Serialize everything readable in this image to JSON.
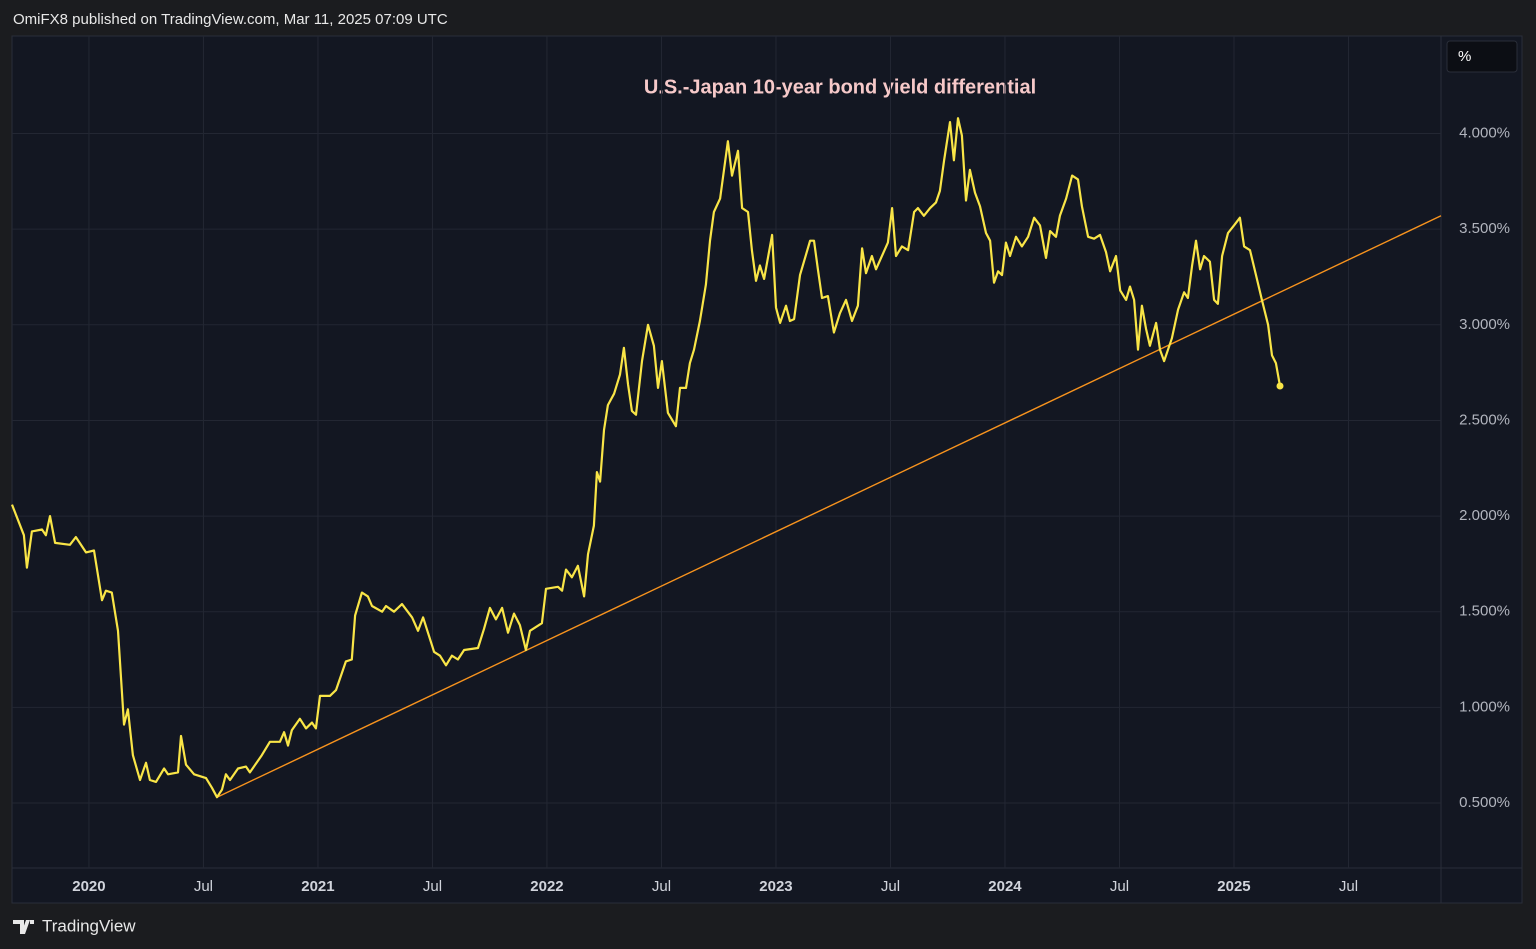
{
  "header": "OmiFX8 published on TradingView.com, Mar 11, 2025 07:09 UTC",
  "footer": "TradingView",
  "chart_data": {
    "type": "line",
    "title": "U.S.-Japan 10-year bond yield differential",
    "unit_label": "%",
    "xlim": [
      2019.664,
      2025.904
    ],
    "ylim": [
      0.16,
      4.51
    ],
    "xticks": [
      2020,
      {
        "value": 2020.5,
        "label": "Jul"
      },
      2021,
      {
        "value": 2021.5,
        "label": "Jul"
      },
      2022,
      {
        "value": 2022.5,
        "label": "Jul"
      },
      2023,
      {
        "value": 2023.5,
        "label": "Jul"
      },
      2024,
      {
        "value": 2024.5,
        "label": "Jul"
      },
      2025,
      {
        "value": 2025.5,
        "label": "Jul"
      }
    ],
    "yticks": [
      {
        "value": 0.5,
        "label": "0.500%"
      },
      {
        "value": 1,
        "label": "1.000%"
      },
      {
        "value": 1.5,
        "label": "1.500%"
      },
      {
        "value": 2,
        "label": "2.000%"
      },
      {
        "value": 2.5,
        "label": "2.500%"
      },
      {
        "value": 3,
        "label": "3.000%"
      },
      {
        "value": 3.5,
        "label": "3.500%"
      },
      {
        "value": 4,
        "label": "4.000%"
      }
    ],
    "grid": true,
    "series": [
      {
        "color": "#f9e547",
        "x": [
          2019.664,
          2019.716,
          2019.729,
          2019.751,
          2019.795,
          2019.812,
          2019.83,
          2019.852,
          2019.917,
          2019.943,
          2019.987,
          2020.022,
          2020.057,
          2020.074,
          2020.1,
          2020.127,
          2020.153,
          2020.17,
          2020.192,
          2020.223,
          2020.249,
          2020.266,
          2020.293,
          2020.328,
          2020.345,
          2020.389,
          2020.402,
          2020.424,
          2020.459,
          2020.511,
          2020.537,
          2020.559,
          2020.581,
          2020.598,
          2020.616,
          2020.651,
          2020.686,
          2020.703,
          2020.755,
          2020.79,
          2020.834,
          2020.852,
          2020.869,
          2020.886,
          2020.921,
          2020.948,
          2020.974,
          2020.991,
          2021.009,
          2021.052,
          2021.079,
          2021.122,
          2021.148,
          2021.162,
          2021.192,
          2021.218,
          2021.236,
          2021.28,
          2021.297,
          2021.332,
          2021.367,
          2021.411,
          2021.437,
          2021.459,
          2021.507,
          2021.533,
          2021.559,
          2021.585,
          2021.611,
          2021.638,
          2021.699,
          2021.725,
          2021.751,
          2021.777,
          2021.804,
          2021.83,
          2021.856,
          2021.882,
          2021.908,
          2021.926,
          2021.978,
          2021.996,
          2022.048,
          2022.066,
          2022.083,
          2022.109,
          2022.135,
          2022.162,
          2022.179,
          2022.205,
          2022.218,
          2022.232,
          2022.249,
          2022.266,
          2022.293,
          2022.319,
          2022.336,
          2022.354,
          2022.371,
          2022.389,
          2022.415,
          2022.441,
          2022.467,
          2022.485,
          2022.502,
          2022.528,
          2022.563,
          2022.581,
          2022.607,
          2022.624,
          2022.642,
          2022.668,
          2022.694,
          2022.712,
          2022.729,
          2022.756,
          2022.773,
          2022.79,
          2022.808,
          2022.834,
          2022.852,
          2022.878,
          2022.895,
          2022.913,
          2022.93,
          2022.948,
          2022.983,
          2023.0,
          2023.018,
          2023.044,
          2023.061,
          2023.079,
          2023.105,
          2023.149,
          2023.166,
          2023.183,
          2023.201,
          2023.227,
          2023.253,
          2023.279,
          2023.306,
          2023.332,
          2023.358,
          2023.376,
          2023.393,
          2023.419,
          2023.437,
          2023.489,
          2023.507,
          2023.524,
          2023.55,
          2023.577,
          2023.603,
          2023.62,
          2023.646,
          2023.673,
          2023.699,
          2023.716,
          2023.734,
          2023.76,
          2023.777,
          2023.795,
          2023.812,
          2023.83,
          2023.847,
          2023.869,
          2023.891,
          2023.917,
          2023.935,
          2023.952,
          2023.97,
          2023.987,
          2024.004,
          2024.022,
          2024.048,
          2024.074,
          2024.101,
          2024.127,
          2024.153,
          2024.179,
          2024.197,
          2024.223,
          2024.24,
          2024.267,
          2024.293,
          2024.319,
          2024.336,
          2024.363,
          2024.389,
          2024.415,
          2024.441,
          2024.459,
          2024.485,
          2024.503,
          2024.529,
          2024.546,
          2024.564,
          2024.581,
          2024.598,
          2024.616,
          2024.633,
          2024.66,
          2024.677,
          2024.695,
          2024.712,
          2024.729,
          2024.756,
          2024.782,
          2024.799,
          2024.817,
          2024.834,
          2024.852,
          2024.869,
          2024.895,
          2024.913,
          2024.93,
          2024.948,
          2024.974,
          2025.0,
          2025.026,
          2025.044,
          2025.07,
          2025.096,
          2025.122,
          2025.149,
          2025.166,
          2025.183,
          2025.201
        ],
        "values": [
          2.06,
          1.9,
          1.73,
          1.92,
          1.93,
          1.9,
          2.0,
          1.86,
          1.85,
          1.89,
          1.81,
          1.82,
          1.56,
          1.61,
          1.6,
          1.4,
          0.91,
          0.99,
          0.75,
          0.62,
          0.71,
          0.62,
          0.61,
          0.68,
          0.65,
          0.66,
          0.85,
          0.7,
          0.65,
          0.63,
          0.58,
          0.53,
          0.57,
          0.65,
          0.62,
          0.68,
          0.69,
          0.66,
          0.75,
          0.82,
          0.82,
          0.87,
          0.8,
          0.88,
          0.94,
          0.89,
          0.92,
          0.89,
          1.06,
          1.06,
          1.09,
          1.24,
          1.25,
          1.48,
          1.6,
          1.58,
          1.53,
          1.5,
          1.53,
          1.5,
          1.54,
          1.47,
          1.4,
          1.47,
          1.29,
          1.27,
          1.22,
          1.27,
          1.25,
          1.3,
          1.31,
          1.41,
          1.52,
          1.46,
          1.52,
          1.39,
          1.49,
          1.43,
          1.3,
          1.4,
          1.44,
          1.62,
          1.63,
          1.61,
          1.72,
          1.68,
          1.74,
          1.58,
          1.8,
          1.95,
          2.23,
          2.18,
          2.45,
          2.58,
          2.64,
          2.74,
          2.88,
          2.69,
          2.55,
          2.53,
          2.81,
          3.0,
          2.89,
          2.67,
          2.81,
          2.54,
          2.47,
          2.67,
          2.67,
          2.8,
          2.87,
          3.02,
          3.21,
          3.44,
          3.59,
          3.66,
          3.81,
          3.96,
          3.78,
          3.91,
          3.61,
          3.59,
          3.39,
          3.23,
          3.31,
          3.24,
          3.47,
          3.09,
          3.01,
          3.1,
          3.02,
          3.03,
          3.26,
          3.44,
          3.44,
          3.29,
          3.14,
          3.15,
          2.96,
          3.06,
          3.13,
          3.02,
          3.1,
          3.4,
          3.27,
          3.36,
          3.29,
          3.43,
          3.61,
          3.36,
          3.41,
          3.39,
          3.59,
          3.61,
          3.57,
          3.61,
          3.64,
          3.7,
          3.86,
          4.06,
          3.86,
          4.08,
          3.99,
          3.65,
          3.81,
          3.69,
          3.62,
          3.48,
          3.44,
          3.22,
          3.28,
          3.26,
          3.43,
          3.36,
          3.46,
          3.41,
          3.46,
          3.56,
          3.52,
          3.35,
          3.49,
          3.46,
          3.57,
          3.66,
          3.78,
          3.76,
          3.62,
          3.46,
          3.45,
          3.47,
          3.38,
          3.28,
          3.36,
          3.18,
          3.13,
          3.2,
          3.13,
          2.87,
          3.1,
          2.98,
          2.89,
          3.01,
          2.87,
          2.81,
          2.87,
          2.93,
          3.08,
          3.17,
          3.14,
          3.31,
          3.44,
          3.29,
          3.36,
          3.33,
          3.13,
          3.11,
          3.36,
          3.48,
          3.52,
          3.56,
          3.41,
          3.39,
          3.26,
          3.13,
          3.0,
          2.84,
          2.8,
          2.68
        ]
      }
    ],
    "trendline": {
      "color": "#f7931e",
      "x": [
        2020.559,
        2025.904
      ],
      "values": [
        0.53,
        3.57
      ]
    }
  }
}
